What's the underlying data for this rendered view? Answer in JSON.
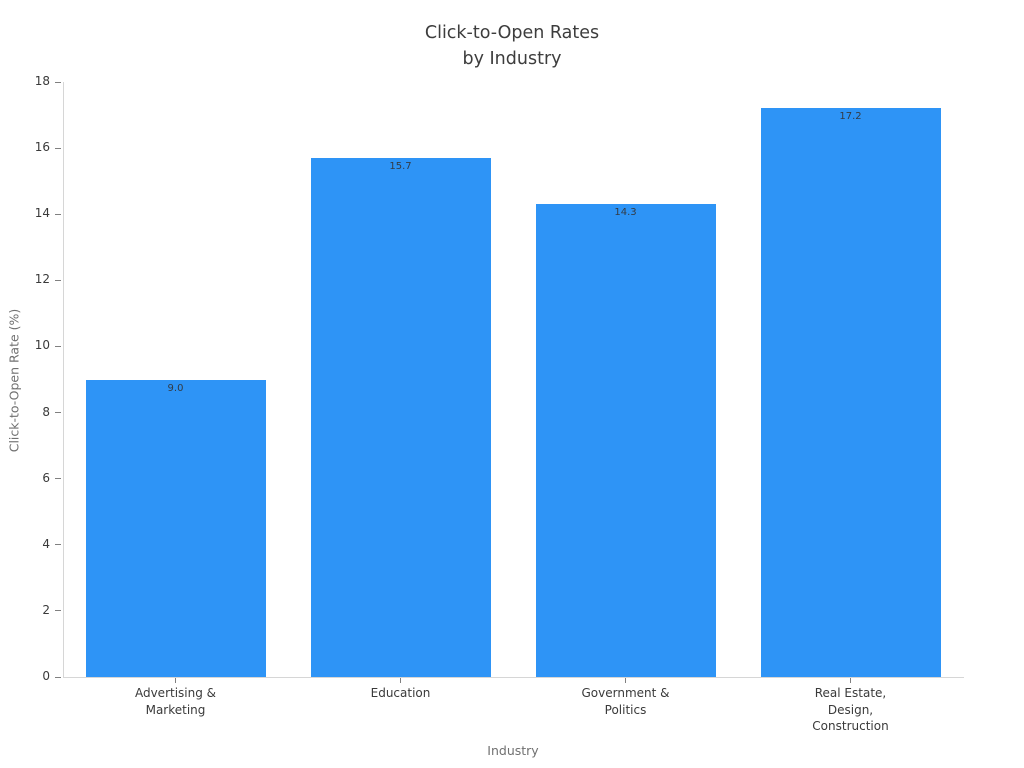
{
  "chart_data": {
    "type": "bar",
    "title": "Click-to-Open Rates\nby Industry",
    "xlabel": "Industry",
    "ylabel": "Click-to-Open Rate (%)",
    "categories": [
      "Advertising &\nMarketing",
      "Education",
      "Government &\nPolitics",
      "Real Estate,\nDesign,\nConstruction"
    ],
    "values": [
      9.0,
      15.7,
      14.3,
      17.2
    ],
    "value_labels": [
      "9.0",
      "15.7",
      "14.3",
      "17.2"
    ],
    "ylim": [
      0,
      18
    ],
    "yticks": [
      0,
      2,
      4,
      6,
      8,
      10,
      12,
      14,
      16,
      18
    ],
    "bar_color": "#2E94F6",
    "grid": false,
    "legend": false
  }
}
